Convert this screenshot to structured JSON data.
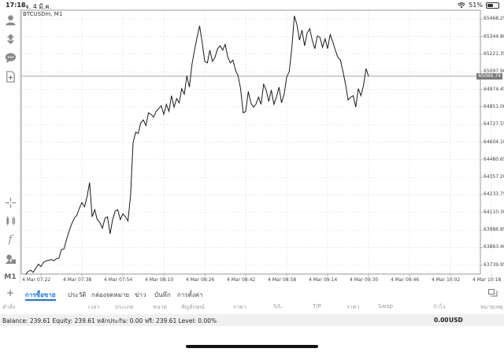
{
  "status_bar": {
    "time": "17:18",
    "date": "จ. 4 มี.ค.",
    "battery": "51%",
    "battery_level": 0.51
  },
  "chart": {
    "title": "BTCUSDm, M1",
    "current_price": "65066.74",
    "price_labels": [
      "65468.25",
      "65344.80",
      "65221.35",
      "65097.90",
      "64974.45",
      "64851.00",
      "64727.55",
      "64604.10",
      "64480.65",
      "64357.20",
      "64233.75",
      "64110.30",
      "63986.85",
      "63863.40",
      "63739.95"
    ],
    "time_labels": [
      "4 Mar 07:22",
      "4 Mar 07:38",
      "4 Mar 07:54",
      "4 Mar 08:10",
      "4 Mar 08:26",
      "4 Mar 08:42",
      "4 Mar 08:58",
      "4 Mar 09:14",
      "4 Mar 09:30",
      "4 Mar 09:46",
      "4 Mar 10:02",
      "4 Mar 10:18"
    ]
  },
  "chart_data": {
    "type": "line",
    "title": "BTCUSDm, M1",
    "xlabel": "",
    "ylabel": "",
    "ylim": [
      63678.2,
      65530.0
    ],
    "grid": true,
    "x_start": "4 Mar 07:16",
    "x_step_minutes": 1,
    "current_price": 65066.74,
    "series": [
      {
        "values": [
          63675,
          63697,
          63705,
          63690,
          63720,
          63748,
          63730,
          63760,
          63770,
          63775,
          63780,
          63772,
          63785,
          63790,
          63850,
          63855,
          63920,
          63980,
          64030,
          64070,
          64090,
          64140,
          64180,
          64150,
          64220,
          64320,
          64080,
          64130,
          64060,
          64040,
          64000,
          64070,
          64080,
          63960,
          64060,
          64120,
          64130,
          64060,
          64100,
          64080,
          64050,
          64230,
          64600,
          64675,
          64665,
          64740,
          64760,
          64720,
          64810,
          64800,
          64780,
          64820,
          64840,
          64860,
          64800,
          64870,
          64820,
          64930,
          64850,
          64910,
          64880,
          64980,
          64940,
          65070,
          64990,
          65150,
          65250,
          65340,
          65420,
          65300,
          65170,
          65160,
          65250,
          65170,
          65200,
          65260,
          65280,
          65250,
          65290,
          65200,
          65160,
          65180,
          65110,
          65070,
          64980,
          64810,
          64820,
          64960,
          64880,
          64850,
          64870,
          64920,
          64870,
          65010,
          64970,
          64890,
          64970,
          64870,
          64920,
          64990,
          64880,
          64940,
          65060,
          65100,
          65260,
          65490,
          65430,
          65320,
          65390,
          65280,
          65370,
          65400,
          65320,
          65260,
          65350,
          65340,
          65270,
          65330,
          65260,
          65360,
          65310,
          65250,
          65200,
          65180,
          65100,
          65010,
          64900,
          64920,
          64930,
          64850,
          64980,
          64930,
          65000,
          65120,
          65066.74
        ]
      }
    ]
  },
  "tabs": {
    "items": [
      {
        "label": "การซื้อขาย"
      },
      {
        "label": "ประวัติ"
      },
      {
        "label": "กล่องจดหมาย"
      },
      {
        "label": "ข่าว"
      },
      {
        "label": "บันทึก"
      },
      {
        "label": "การตั้งค่า"
      }
    ]
  },
  "columns": {
    "symbol": "คำสั่ง",
    "time": "เวลา",
    "type": "ประเภท",
    "volume": "ขนาด",
    "symbol_col": "สัญลักษณ์",
    "price": "ราคา",
    "sl": "S/L",
    "tp": "T/P",
    "price2": "ราคา",
    "swap": "Swap",
    "profit": "กำไร",
    "comment": "หมายเหตุ"
  },
  "balance": {
    "summary": "Balance: 239.61 Equity: 239.61 หลักประกัน: 0.00 ฟรี: 239.61 Level: 0.00%",
    "profit": "0.00",
    "currency": "USD"
  },
  "toolbar": {
    "icons": [
      "account-icon",
      "trade-icon",
      "chat-icon",
      "add-chart-icon",
      "crosshair-icon",
      "indicators-icon",
      "function-icon",
      "objects-icon",
      "timeframe-icon"
    ],
    "timeframe": "M1"
  }
}
